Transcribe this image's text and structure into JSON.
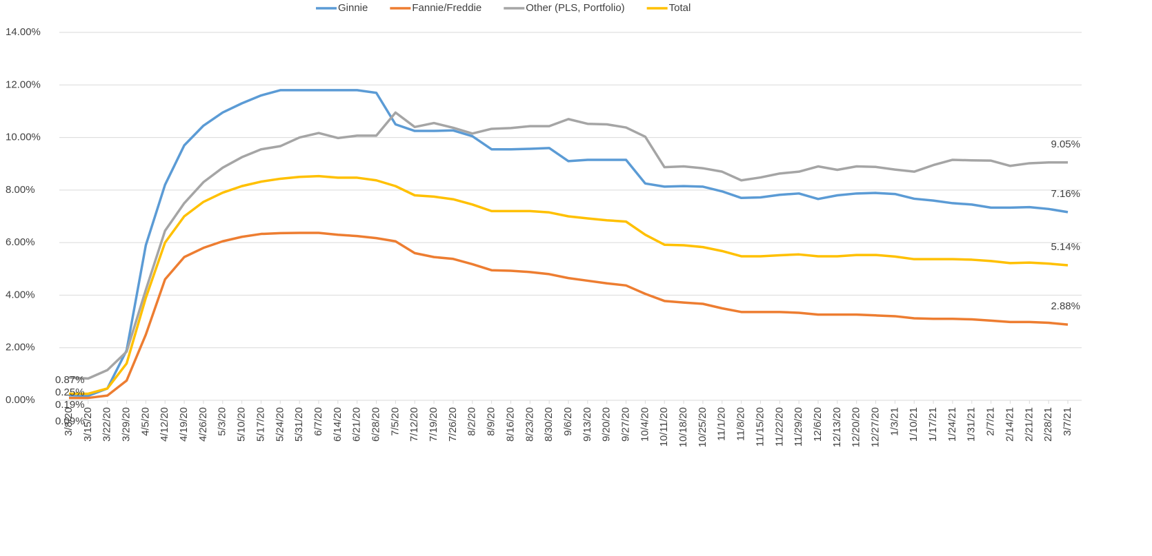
{
  "chart_data": {
    "type": "line",
    "categories": [
      "3/8/20",
      "3/15/20",
      "3/22/20",
      "3/29/20",
      "4/5/20",
      "4/12/20",
      "4/19/20",
      "4/26/20",
      "5/3/20",
      "5/10/20",
      "5/17/20",
      "5/24/20",
      "5/31/20",
      "6/7/20",
      "6/14/20",
      "6/21/20",
      "6/28/20",
      "7/5/20",
      "7/12/20",
      "7/19/20",
      "7/26/20",
      "8/2/20",
      "8/9/20",
      "8/16/20",
      "8/23/20",
      "8/30/20",
      "9/6/20",
      "9/13/20",
      "9/20/20",
      "9/27/20",
      "10/4/20",
      "10/11/20",
      "10/18/20",
      "10/25/20",
      "11/1/20",
      "11/8/20",
      "11/15/20",
      "11/22/20",
      "11/29/20",
      "12/6/20",
      "12/13/20",
      "12/20/20",
      "12/27/20",
      "1/3/21",
      "1/10/21",
      "1/17/21",
      "1/24/21",
      "1/31/21",
      "2/7/21",
      "2/14/21",
      "2/21/21",
      "2/28/21",
      "3/7/21"
    ],
    "series": [
      {
        "name": "Ginnie",
        "color": "#5b9bd5",
        "values": [
          0.19,
          0.17,
          0.45,
          1.9,
          5.9,
          8.2,
          9.7,
          10.45,
          10.95,
          11.3,
          11.6,
          11.8,
          11.8,
          11.8,
          11.8,
          11.8,
          11.7,
          10.5,
          10.25,
          10.25,
          10.27,
          10.05,
          9.55,
          9.55,
          9.57,
          9.6,
          9.1,
          9.15,
          9.15,
          9.15,
          8.25,
          8.13,
          8.15,
          8.13,
          7.95,
          7.7,
          7.72,
          7.82,
          7.87,
          7.66,
          7.8,
          7.87,
          7.89,
          7.85,
          7.67,
          7.6,
          7.5,
          7.45,
          7.33,
          7.33,
          7.35,
          7.28,
          7.16
        ],
        "value_labels": [
          "0.19%",
          null,
          null,
          null,
          null,
          null,
          null,
          null,
          null,
          null,
          null,
          null,
          null,
          null,
          null,
          null,
          null,
          null,
          null,
          null,
          null,
          null,
          null,
          null,
          null,
          null,
          null,
          null,
          null,
          null,
          null,
          null,
          null,
          null,
          null,
          null,
          null,
          null,
          null,
          null,
          null,
          null,
          null,
          null,
          null,
          null,
          null,
          null,
          null,
          null,
          null,
          null,
          "7.16%"
        ]
      },
      {
        "name": "Fannie/Freddie",
        "color": "#ed7d31",
        "values": [
          0.09,
          0.09,
          0.18,
          0.75,
          2.5,
          4.6,
          5.45,
          5.8,
          6.05,
          6.22,
          6.33,
          6.36,
          6.37,
          6.37,
          6.3,
          6.25,
          6.17,
          6.05,
          5.6,
          5.45,
          5.38,
          5.18,
          4.95,
          4.93,
          4.88,
          4.8,
          4.65,
          4.55,
          4.45,
          4.37,
          4.05,
          3.78,
          3.72,
          3.67,
          3.5,
          3.36,
          3.36,
          3.36,
          3.33,
          3.26,
          3.26,
          3.26,
          3.23,
          3.2,
          3.12,
          3.1,
          3.1,
          3.08,
          3.03,
          2.98,
          2.98,
          2.95,
          2.88
        ],
        "value_labels": [
          "0.09%",
          null,
          null,
          null,
          null,
          null,
          null,
          null,
          null,
          null,
          null,
          null,
          null,
          null,
          null,
          null,
          null,
          null,
          null,
          null,
          null,
          null,
          null,
          null,
          null,
          null,
          null,
          null,
          null,
          null,
          null,
          null,
          null,
          null,
          null,
          null,
          null,
          null,
          null,
          null,
          null,
          null,
          null,
          null,
          null,
          null,
          null,
          null,
          null,
          null,
          null,
          null,
          "2.88%"
        ]
      },
      {
        "name": "Other (PLS, Portfolio)",
        "color": "#a5a5a5",
        "values": [
          0.87,
          0.83,
          1.15,
          1.85,
          4.2,
          6.45,
          7.5,
          8.3,
          8.85,
          9.25,
          9.55,
          9.67,
          10.0,
          10.17,
          9.98,
          10.07,
          10.07,
          10.95,
          10.4,
          10.55,
          10.37,
          10.15,
          10.33,
          10.36,
          10.43,
          10.43,
          10.7,
          10.52,
          10.5,
          10.38,
          10.03,
          8.87,
          8.9,
          8.83,
          8.7,
          8.37,
          8.48,
          8.63,
          8.7,
          8.9,
          8.77,
          8.9,
          8.88,
          8.78,
          8.7,
          8.95,
          9.15,
          9.13,
          9.12,
          8.92,
          9.02,
          9.05,
          9.05
        ],
        "value_labels": [
          "0.87%",
          null,
          null,
          null,
          null,
          null,
          null,
          null,
          null,
          null,
          null,
          null,
          null,
          null,
          null,
          null,
          null,
          null,
          null,
          null,
          null,
          null,
          null,
          null,
          null,
          null,
          null,
          null,
          null,
          null,
          null,
          null,
          null,
          null,
          null,
          null,
          null,
          null,
          null,
          null,
          null,
          null,
          null,
          null,
          null,
          null,
          null,
          null,
          null,
          null,
          null,
          null,
          "9.05%"
        ]
      },
      {
        "name": "Total",
        "color": "#ffc000",
        "values": [
          0.25,
          0.25,
          0.45,
          1.4,
          3.9,
          6.0,
          7.0,
          7.55,
          7.9,
          8.15,
          8.32,
          8.43,
          8.5,
          8.53,
          8.47,
          8.47,
          8.37,
          8.15,
          7.8,
          7.75,
          7.65,
          7.45,
          7.2,
          7.2,
          7.2,
          7.15,
          7.0,
          6.92,
          6.85,
          6.8,
          6.3,
          5.92,
          5.9,
          5.83,
          5.68,
          5.48,
          5.48,
          5.52,
          5.55,
          5.48,
          5.48,
          5.53,
          5.53,
          5.47,
          5.37,
          5.37,
          5.37,
          5.35,
          5.3,
          5.22,
          5.24,
          5.2,
          5.14
        ],
        "value_labels": [
          "0.25%",
          null,
          null,
          null,
          null,
          null,
          null,
          null,
          null,
          null,
          null,
          null,
          null,
          null,
          null,
          null,
          null,
          null,
          null,
          null,
          null,
          null,
          null,
          null,
          null,
          null,
          null,
          null,
          null,
          null,
          null,
          null,
          null,
          null,
          null,
          null,
          null,
          null,
          null,
          null,
          null,
          null,
          null,
          null,
          null,
          null,
          null,
          null,
          null,
          null,
          null,
          null,
          "5.14%"
        ]
      }
    ],
    "ylim": [
      0,
      14
    ],
    "yticks": [
      {
        "value": 0,
        "label": "0.00%"
      },
      {
        "value": 2,
        "label": "2.00%"
      },
      {
        "value": 4,
        "label": "4.00%"
      },
      {
        "value": 6,
        "label": "6.00%"
      },
      {
        "value": 8,
        "label": "8.00%"
      },
      {
        "value": 10,
        "label": "10.00%"
      },
      {
        "value": 12,
        "label": "12.00%"
      },
      {
        "value": 14,
        "label": "14.00%"
      }
    ],
    "grid": true,
    "legend": "top"
  }
}
